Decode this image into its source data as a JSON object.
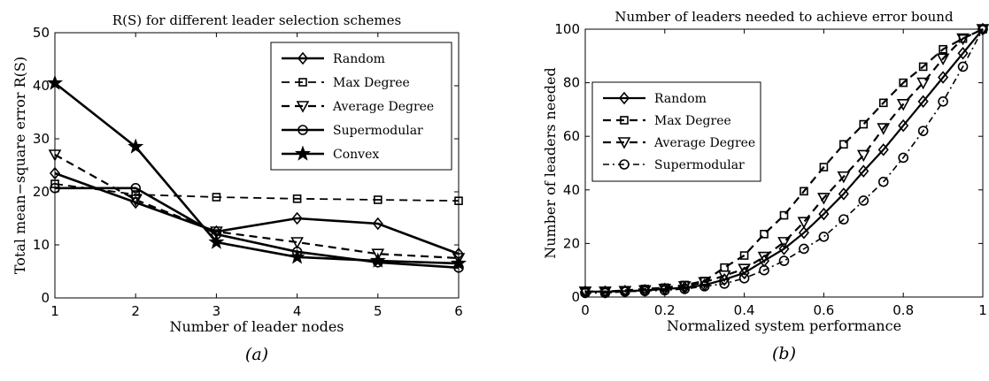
{
  "chart_data": [
    {
      "type": "line",
      "title": "R(S) for different leader selection schemes",
      "xlabel": "Number of leader nodes",
      "ylabel": "Total mean−square error R(S)",
      "panel_label": "(a)",
      "xlim": [
        1,
        6
      ],
      "ylim": [
        0,
        50
      ],
      "xticks": [
        1,
        2,
        3,
        4,
        5,
        6
      ],
      "yticks": [
        0,
        10,
        20,
        30,
        40,
        50
      ],
      "grid": false,
      "legend_position": "top-right",
      "x": [
        1,
        2,
        3,
        4,
        5,
        6
      ],
      "series": [
        {
          "name": "Random",
          "marker": "diamond",
          "dash": "solid",
          "width": 2.6,
          "values": [
            23.5,
            18.0,
            12.5,
            15.0,
            14.0,
            8.3
          ]
        },
        {
          "name": "Max Degree",
          "marker": "square",
          "dash": "dashed",
          "width": 1.8,
          "values": [
            21.5,
            19.5,
            19.0,
            18.7,
            18.5,
            18.3
          ]
        },
        {
          "name": "Average Degree",
          "marker": "triangle-down",
          "dash": "dashed",
          "width": 2.2,
          "values": [
            27.0,
            18.5,
            12.5,
            10.5,
            8.3,
            7.5
          ]
        },
        {
          "name": "Supermodular",
          "marker": "circle",
          "dash": "solid",
          "width": 2.6,
          "values": [
            20.7,
            20.7,
            12.0,
            8.7,
            6.7,
            5.7
          ]
        },
        {
          "name": "Convex",
          "marker": "star",
          "dash": "solid",
          "width": 2.6,
          "values": [
            40.5,
            28.5,
            10.5,
            7.7,
            7.0,
            6.5
          ]
        }
      ]
    },
    {
      "type": "line",
      "title": "Number of leaders needed to achieve error bound",
      "xlabel": "Normalized system performance",
      "ylabel": "Number of leaders needed",
      "panel_label": "(b)",
      "xlim": [
        0,
        1
      ],
      "ylim": [
        0,
        100
      ],
      "xticks": [
        0,
        0.2,
        0.4,
        0.6,
        0.8,
        1
      ],
      "yticks": [
        0,
        20,
        40,
        60,
        80,
        100
      ],
      "grid": false,
      "legend_position": "top-left",
      "x": [
        0,
        0.05,
        0.1,
        0.15,
        0.2,
        0.25,
        0.3,
        0.35,
        0.4,
        0.45,
        0.5,
        0.55,
        0.6,
        0.65,
        0.7,
        0.75,
        0.8,
        0.85,
        0.9,
        0.95,
        1.0
      ],
      "series": [
        {
          "name": "Random",
          "marker": "diamond",
          "dash": "solid",
          "width": 2.2,
          "values": [
            2,
            2,
            2.2,
            2.5,
            3,
            3.5,
            4.5,
            6.5,
            9,
            13.5,
            18,
            24,
            31,
            38.5,
            47,
            55,
            64,
            73,
            82,
            91,
            100
          ]
        },
        {
          "name": "Max Degree",
          "marker": "square",
          "dash": "dashed",
          "width": 2.2,
          "values": [
            2,
            2,
            2.5,
            3,
            3.5,
            4.5,
            6,
            11,
            15.5,
            23.5,
            30.5,
            39.5,
            48.5,
            57,
            64.5,
            72.5,
            80,
            86,
            92.5,
            96.5,
            100
          ]
        },
        {
          "name": "Average Degree",
          "marker": "triangle-down",
          "dash": "dashed",
          "width": 2.2,
          "values": [
            2,
            2,
            2.2,
            2.5,
            3,
            4,
            5.5,
            8,
            10.5,
            15,
            20.5,
            28,
            37,
            45,
            53,
            63,
            72,
            80,
            89,
            96.5,
            100
          ]
        },
        {
          "name": "Supermodular",
          "marker": "circle",
          "dash": "dashdot",
          "width": 1.6,
          "values": [
            1.5,
            1.5,
            2,
            2.2,
            2.5,
            3,
            4,
            5,
            7,
            10,
            13.5,
            18,
            22.5,
            29,
            36,
            43,
            52,
            62,
            73,
            86,
            100
          ]
        }
      ]
    }
  ]
}
